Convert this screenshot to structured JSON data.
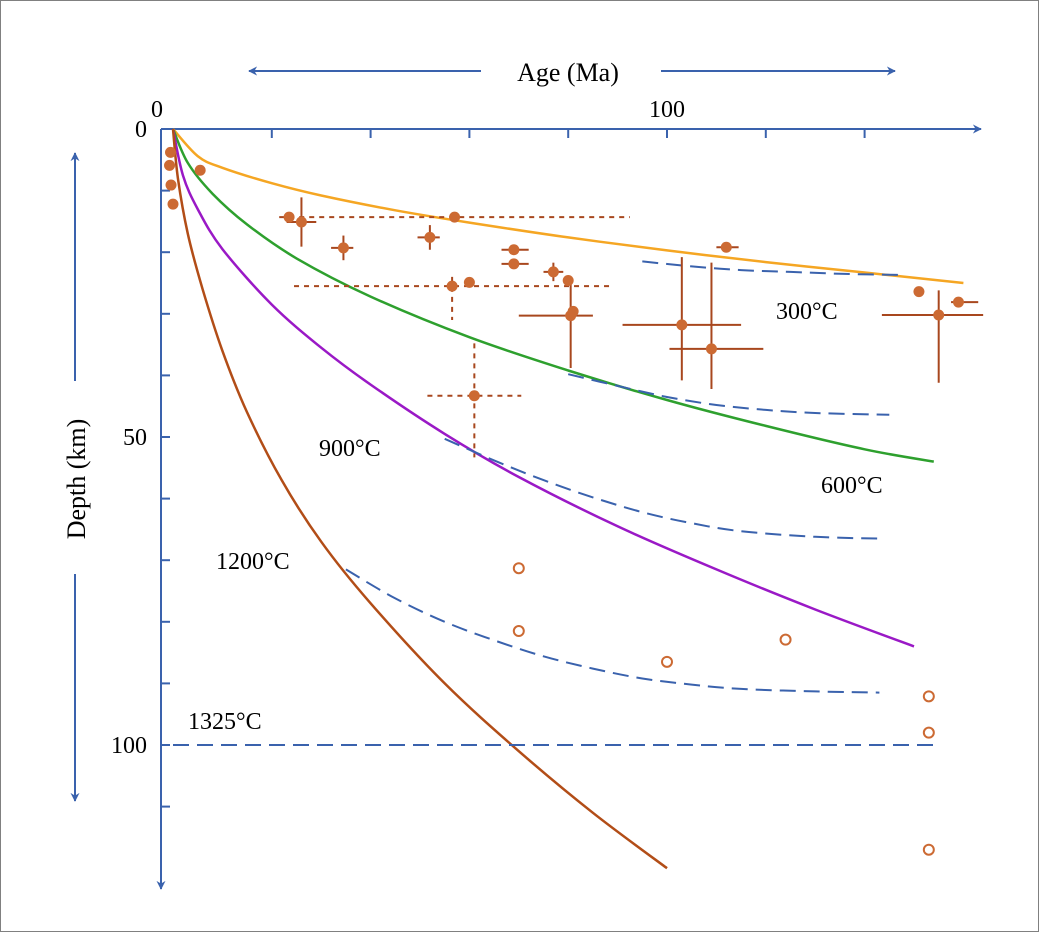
{
  "chart_data": {
    "type": "line",
    "title": "",
    "xlabel": "Age (Ma)",
    "ylabel": "Depth (km)",
    "x_ticks": [
      0,
      100
    ],
    "y_ticks": [
      0,
      50,
      100
    ],
    "xlim": [
      0,
      160
    ],
    "ylim": [
      0,
      120
    ],
    "grid": false,
    "legend": "none",
    "colors": {
      "axis": "#3a62ad",
      "isotherm_300": "#f5a623",
      "isotherm_600": "#2ea02e",
      "isotherm_900": "#9a19c6",
      "isotherm_1200": "#b24d17",
      "dashed": "#3a62ad",
      "data": "#cc6a33",
      "errorbar": "#a8471e"
    },
    "isotherm_labels": [
      "300°C",
      "600°C",
      "900°C",
      "1200°C",
      "1325°C"
    ],
    "series": [
      {
        "name": "300°C",
        "style": "solid",
        "color": "#f5a623",
        "x": [
          0,
          5,
          10,
          20,
          30,
          45,
          60,
          80,
          100,
          120,
          140,
          160
        ],
        "y": [
          0,
          4.4,
          6.3,
          8.8,
          10.8,
          13.2,
          15.2,
          17.6,
          19.7,
          21.6,
          23.3,
          25
        ]
      },
      {
        "name": "600°C",
        "style": "solid",
        "color": "#2ea02e",
        "x": [
          0,
          3,
          8,
          15,
          25,
          40,
          60,
          80,
          100,
          120,
          140,
          154
        ],
        "y": [
          0,
          5.5,
          10.5,
          15.5,
          21,
          27.2,
          33.8,
          39.2,
          44,
          48.2,
          52,
          54
        ]
      },
      {
        "name": "900°C",
        "style": "solid",
        "color": "#9a19c6",
        "x": [
          0,
          2,
          5,
          10,
          20,
          30,
          40,
          55,
          70,
          90,
          110,
          130,
          150
        ],
        "y": [
          0,
          7.5,
          13,
          19.5,
          28.5,
          35.5,
          41.5,
          49.5,
          56.5,
          64.5,
          71.5,
          78,
          84
        ]
      },
      {
        "name": "1200°C",
        "style": "solid",
        "color": "#b24d17",
        "x": [
          0,
          1,
          3,
          6,
          10,
          15,
          22,
          30,
          40,
          55,
          70,
          85,
          100
        ],
        "y": [
          0,
          8,
          17,
          26,
          36,
          46,
          57,
          67,
          77,
          90,
          101,
          111,
          120
        ]
      },
      {
        "name": "",
        "style": "dashed",
        "color": "#3a62ad",
        "x": [
          95,
          105,
          115,
          125,
          135,
          148
        ],
        "y": [
          21.5,
          22.3,
          22.9,
          23.2,
          23.5,
          23.7
        ]
      },
      {
        "name": "",
        "style": "dashed",
        "color": "#3a62ad",
        "x": [
          80,
          90,
          100,
          110,
          120,
          130,
          145
        ],
        "y": [
          39.8,
          41.7,
          43.5,
          44.8,
          45.6,
          46.1,
          46.4
        ]
      },
      {
        "name": "",
        "style": "dashed",
        "color": "#3a62ad",
        "x": [
          55,
          65,
          75,
          85,
          95,
          105,
          115,
          130,
          143
        ],
        "y": [
          50.3,
          53.8,
          57,
          59.8,
          62.2,
          64,
          65.3,
          66.2,
          66.5
        ]
      },
      {
        "name": "",
        "style": "dashed",
        "color": "#3a62ad",
        "x": [
          35,
          45,
          55,
          65,
          75,
          85,
          95,
          105,
          115,
          130,
          143
        ],
        "y": [
          71.5,
          76.2,
          80,
          83,
          85.6,
          87.6,
          89.2,
          90.2,
          90.9,
          91.3,
          91.5
        ]
      },
      {
        "name": "1325°C",
        "style": "dashed",
        "color": "#3a62ad",
        "x": [
          0,
          155
        ],
        "y": [
          100,
          100
        ]
      }
    ],
    "points_filled": [
      {
        "x": -0.5,
        "y": 3.8
      },
      {
        "x": -0.7,
        "y": 5.9
      },
      {
        "x": -0.4,
        "y": 9.1
      },
      {
        "x": 0,
        "y": 12.2
      },
      {
        "x": 5.5,
        "y": 6.7
      },
      {
        "x": 23.5,
        "y": 14.3,
        "xerr": [
          2,
          69
        ],
        "yerr": [
          0,
          0
        ],
        "dashed": true
      },
      {
        "x": 26,
        "y": 15.1,
        "xerr": [
          3,
          3
        ],
        "yerr": [
          4,
          4
        ]
      },
      {
        "x": 34.5,
        "y": 19.3,
        "xerr": [
          2.5,
          2
        ],
        "yerr": [
          2,
          2
        ]
      },
      {
        "x": 52,
        "y": 17.6,
        "xerr": [
          2.5,
          2
        ],
        "yerr": [
          2,
          2
        ]
      },
      {
        "x": 57,
        "y": 14.3
      },
      {
        "x": 56.5,
        "y": 25.5,
        "xerr": [
          32,
          32
        ],
        "yerr": [
          1.5,
          5.5
        ],
        "dashed": true
      },
      {
        "x": 60,
        "y": 24.9
      },
      {
        "x": 69,
        "y": 19.6,
        "xerr": [
          2.5,
          3
        ],
        "yerr": [
          0,
          0
        ]
      },
      {
        "x": 69,
        "y": 21.9,
        "xerr": [
          2.5,
          3
        ],
        "yerr": [
          0,
          0
        ]
      },
      {
        "x": 77,
        "y": 23.2,
        "xerr": [
          2,
          2
        ],
        "yerr": [
          1.5,
          1.5
        ]
      },
      {
        "x": 80,
        "y": 24.6,
        "yerr": [
          0,
          0
        ]
      },
      {
        "x": 80.5,
        "y": 30.3,
        "xerr": [
          10.5,
          4.5
        ],
        "yerr": [
          5.5,
          8.5
        ]
      },
      {
        "x": 81,
        "y": 29.6
      },
      {
        "x": 103,
        "y": 31.8,
        "xerr": [
          12,
          12
        ],
        "yerr": [
          11,
          9
        ]
      },
      {
        "x": 112,
        "y": 19.2,
        "xerr": [
          2,
          2.5
        ],
        "yerr": [
          0,
          0
        ]
      },
      {
        "x": 109,
        "y": 35.7,
        "xerr": [
          8.5,
          10.5
        ],
        "yerr": [
          14,
          6.5
        ]
      },
      {
        "x": 151,
        "y": 26.4
      },
      {
        "x": 155,
        "y": 30.2,
        "xerr": [
          11.5,
          9
        ],
        "yerr": [
          4,
          11
        ]
      },
      {
        "x": 159,
        "y": 28.1,
        "xerr": [
          1.5,
          4
        ],
        "yerr": [
          0,
          0
        ]
      },
      {
        "x": 61,
        "y": 43.3,
        "xerr": [
          9.5,
          9.5
        ],
        "yerr": [
          8.5,
          10
        ],
        "dashed": true
      }
    ],
    "points_open": [
      {
        "x": 70,
        "y": 71.3
      },
      {
        "x": 70,
        "y": 81.5
      },
      {
        "x": 100,
        "y": 86.5
      },
      {
        "x": 124,
        "y": 82.9
      },
      {
        "x": 153,
        "y": 92.1
      },
      {
        "x": 153,
        "y": 98
      },
      {
        "x": 153,
        "y": 117
      }
    ]
  }
}
